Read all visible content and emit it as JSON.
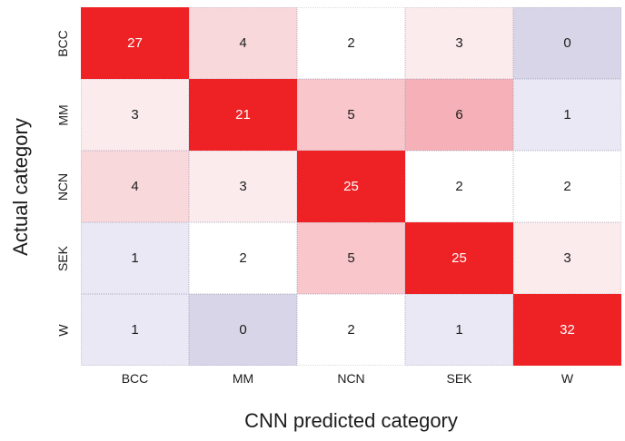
{
  "chart_data": {
    "type": "heatmap",
    "title": "",
    "xlabel": "CNN predicted category",
    "ylabel": "Actual category",
    "x_categories": [
      "BCC",
      "MM",
      "NCN",
      "SEK",
      "W"
    ],
    "y_categories": [
      "BCC",
      "MM",
      "NCN",
      "SEK",
      "W"
    ],
    "matrix": [
      [
        27,
        4,
        2,
        3,
        0
      ],
      [
        3,
        21,
        5,
        6,
        1
      ],
      [
        4,
        3,
        25,
        2,
        2
      ],
      [
        1,
        2,
        5,
        25,
        3
      ],
      [
        1,
        0,
        2,
        1,
        32
      ]
    ],
    "legend": "none",
    "grid": "dotted-cell-borders",
    "value_colors": {
      "0": "#d8d5e8",
      "1": "#eae8f4",
      "2": "#ffffff",
      "3": "#fcebed",
      "4": "#f9d8dc",
      "5": "#f8c6cb",
      "6": "#f5b1b7",
      "21": "#ee2125",
      "25": "#ee2125",
      "27": "#ee2125",
      "32": "#ee2125"
    },
    "light_text_values": [
      21,
      25,
      27,
      32
    ],
    "cell_text_color_dark": "#1c1c1c",
    "cell_text_color_light": "#ffffff",
    "accent_red": "#ee2125",
    "background": "#ffffff"
  }
}
